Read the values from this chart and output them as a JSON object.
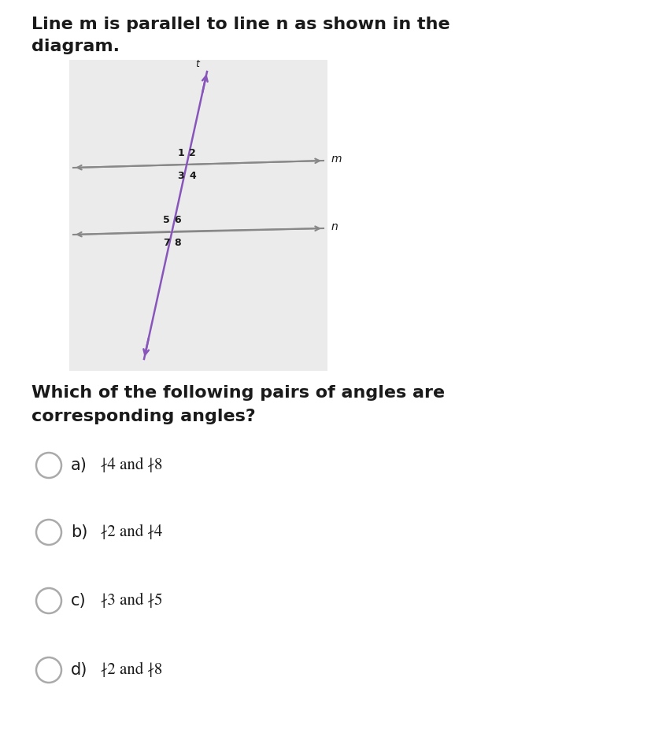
{
  "title_line1": "Line m is parallel to line n as shown in the",
  "title_line2": "diagram.",
  "question_line1": "Which of the following pairs of angles are",
  "question_line2": "corresponding angles?",
  "options": [
    {
      "label": "a)",
      "text1": "∤4",
      "text2": " and ",
      "text3": "∤8"
    },
    {
      "label": "b)",
      "text1": "∤2",
      "text2": " and ",
      "text3": "∤4"
    },
    {
      "label": "c)",
      "text1": "∤3",
      "text2": " and ",
      "text3": "∤5"
    },
    {
      "label": "d)",
      "text1": "∤2",
      "text2": " and ",
      "text3": "∤8"
    }
  ],
  "bg_color": "#ffffff",
  "diagram_bg": "#ebebeb",
  "transversal_color": "#8855bb",
  "parallel_color": "#888888",
  "text_color": "#1a1a1a",
  "fig_width": 8.28,
  "fig_height": 9.31,
  "dpi": 100
}
